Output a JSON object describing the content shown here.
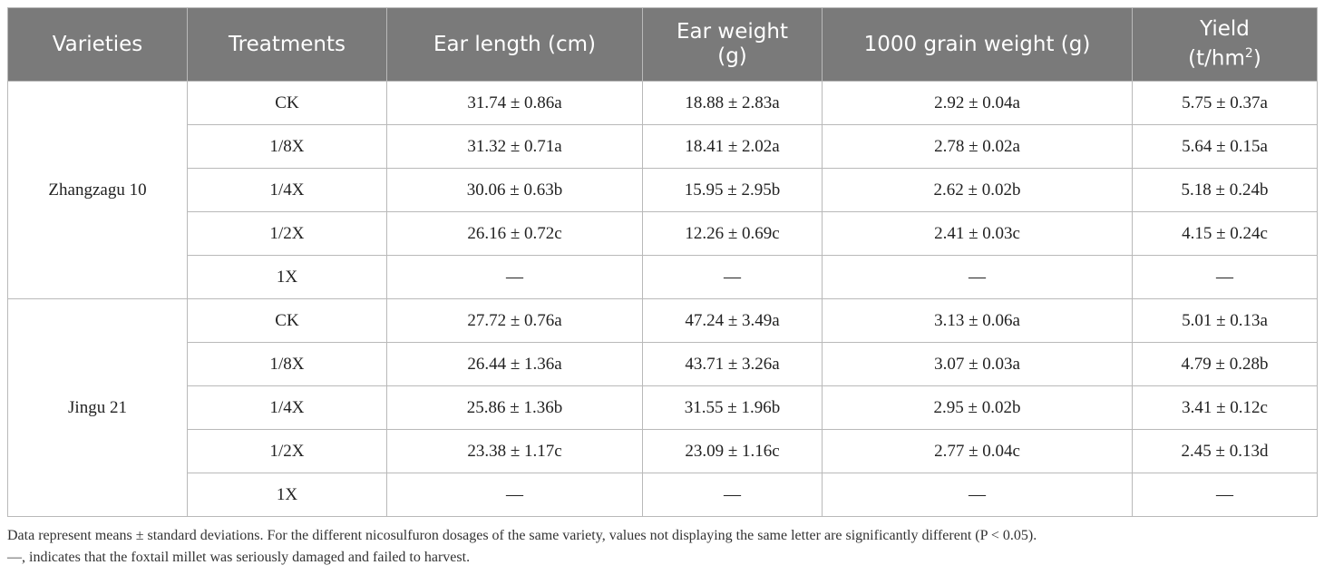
{
  "table": {
    "headers": {
      "varieties": "Varieties",
      "treatments": "Treatments",
      "ear_length": "Ear length (cm)",
      "ear_weight_line1": "Ear weight",
      "ear_weight_line2": "(g)",
      "grain_weight": "1000 grain weight (g)",
      "yield_line1": "Yield",
      "yield_unit": "(t/hm",
      "yield_sup": "2",
      "yield_close": ")"
    },
    "groups": [
      {
        "variety": "Zhangzagu 10",
        "rows": [
          {
            "treatment": "CK",
            "ear_length": "31.74 ± 0.86a",
            "ear_weight": "18.88 ± 2.83a",
            "grain_weight": "2.92 ± 0.04a",
            "yield": "5.75 ± 0.37a"
          },
          {
            "treatment": "1/8X",
            "ear_length": "31.32 ± 0.71a",
            "ear_weight": "18.41 ± 2.02a",
            "grain_weight": "2.78 ± 0.02a",
            "yield": "5.64 ± 0.15a"
          },
          {
            "treatment": "1/4X",
            "ear_length": "30.06 ± 0.63b",
            "ear_weight": "15.95 ± 2.95b",
            "grain_weight": "2.62 ± 0.02b",
            "yield": "5.18 ± 0.24b"
          },
          {
            "treatment": "1/2X",
            "ear_length": "26.16 ± 0.72c",
            "ear_weight": "12.26 ± 0.69c",
            "grain_weight": "2.41 ± 0.03c",
            "yield": "4.15 ± 0.24c"
          },
          {
            "treatment": "1X",
            "ear_length": "—",
            "ear_weight": "—",
            "grain_weight": "—",
            "yield": "—"
          }
        ]
      },
      {
        "variety": "Jingu 21",
        "rows": [
          {
            "treatment": "CK",
            "ear_length": "27.72 ± 0.76a",
            "ear_weight": "47.24 ± 3.49a",
            "grain_weight": "3.13 ± 0.06a",
            "yield": "5.01 ± 0.13a"
          },
          {
            "treatment": "1/8X",
            "ear_length": "26.44 ± 1.36a",
            "ear_weight": "43.71 ± 3.26a",
            "grain_weight": "3.07 ± 0.03a",
            "yield": "4.79 ± 0.28b"
          },
          {
            "treatment": "1/4X",
            "ear_length": "25.86 ± 1.36b",
            "ear_weight": "31.55 ± 1.96b",
            "grain_weight": "2.95 ± 0.02b",
            "yield": "3.41 ± 0.12c"
          },
          {
            "treatment": "1/2X",
            "ear_length": "23.38 ± 1.17c",
            "ear_weight": "23.09 ± 1.16c",
            "grain_weight": "2.77 ± 0.04c",
            "yield": "2.45 ± 0.13d"
          },
          {
            "treatment": "1X",
            "ear_length": "—",
            "ear_weight": "—",
            "grain_weight": "—",
            "yield": "—"
          }
        ]
      }
    ]
  },
  "footnotes": {
    "line1": "Data represent means ± standard deviations. For the different nicosulfuron dosages of the same variety, values not displaying the same letter are significantly different (P < 0.05).",
    "line2": "—, indicates that the foxtail millet was seriously damaged and failed to harvest."
  }
}
